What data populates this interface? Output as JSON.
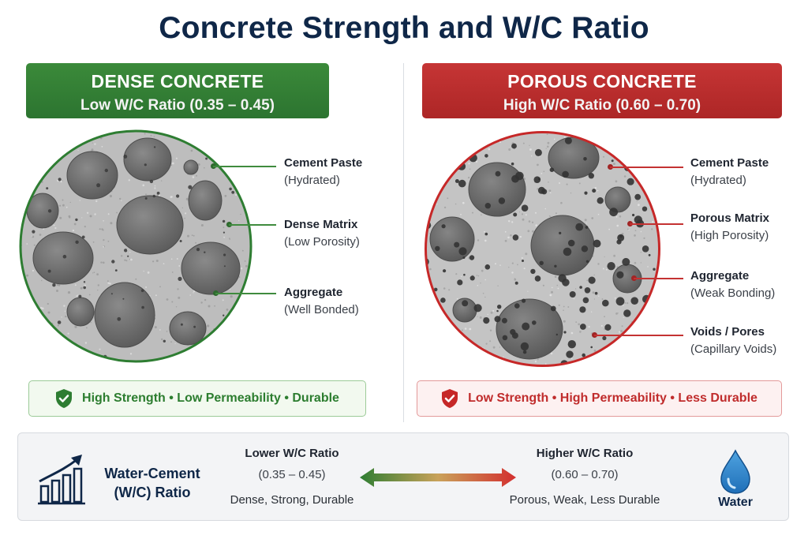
{
  "title": "Concrete Strength and W/C Ratio",
  "dense": {
    "header_title": "DENSE CONCRETE",
    "header_subtitle": "Low W/C Ratio (0.35 – 0.45)",
    "color": "#2e7d32",
    "labels": [
      {
        "main": "Cement Paste",
        "sub": "(Hydrated)"
      },
      {
        "main": "Dense Matrix",
        "sub": "(Low Porosity)"
      },
      {
        "main": "Aggregate",
        "sub": "(Well Bonded)"
      }
    ],
    "status_text": "High Strength • Low Permeability • Durable",
    "status_icon": "shield-check-icon"
  },
  "porous": {
    "header_title": "POROUS CONCRETE",
    "header_subtitle": "High W/C Ratio (0.60 – 0.70)",
    "color": "#c62828",
    "labels": [
      {
        "main": "Cement Paste",
        "sub": "(Hydrated)"
      },
      {
        "main": "Porous Matrix",
        "sub": "(High Porosity)"
      },
      {
        "main": "Aggregate",
        "sub": "(Weak Bonding)"
      },
      {
        "main": "Voids / Pores",
        "sub": "(Capillary Voids)"
      }
    ],
    "status_text": "Low Strength • High Permeability • Less Durable",
    "status_icon": "shield-check-icon"
  },
  "scale": {
    "label": "Water-Cement (W/C) Ratio",
    "label_line1": "Water-Cement",
    "label_line2": "(W/C) Ratio",
    "lower": {
      "title": "Lower W/C Ratio",
      "range": "(0.35 – 0.45)",
      "desc": "Dense, Strong, Durable"
    },
    "higher": {
      "title": "Higher W/C Ratio",
      "range": "(0.60 – 0.70)",
      "desc": "Porous, Weak, Less Durable"
    },
    "water_label": "Water",
    "icons": [
      "bar-chart-growth-icon",
      "double-arrow-icon",
      "water-drop-icon"
    ]
  }
}
